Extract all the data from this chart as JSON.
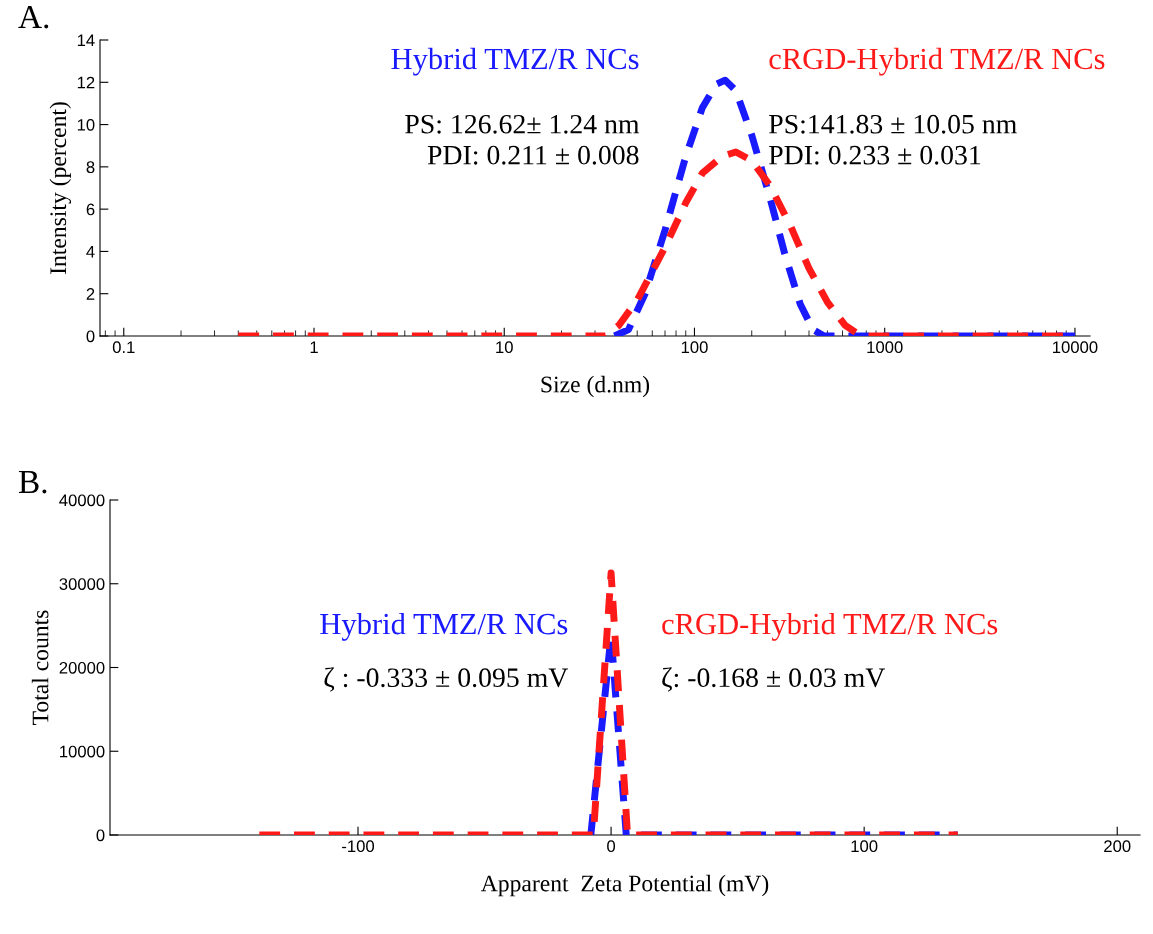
{
  "chart_data": [
    {
      "type": "line",
      "xlabel": "Size (d.nm)",
      "ylabel": "Intensity (percent)",
      "log": "x",
      "xlim": [
        0.075,
        12000
      ],
      "xticks": [
        0.1,
        1,
        10,
        100,
        1000,
        10000
      ],
      "ylim": [
        0,
        14
      ],
      "yticks": [
        0,
        2,
        4,
        6,
        8,
        10,
        12,
        14
      ],
      "line_style": "dashed",
      "marker": "none",
      "grid": false,
      "legend": false,
      "series": [
        {
          "name": "Hybrid TMZ/R NCs",
          "color": "#1a1aff",
          "x": [
            38,
            45,
            55,
            70,
            90,
            110,
            130,
            145,
            165,
            200,
            250,
            300,
            360,
            420,
            480,
            1000,
            10000
          ],
          "values": [
            0,
            0.3,
            2,
            5,
            8.5,
            10.8,
            11.9,
            12.1,
            11.6,
            9.5,
            6.5,
            3.8,
            1.5,
            0.3,
            0,
            0,
            0
          ]
        },
        {
          "name": "cRGD-Hybrid TMZ/R NCs",
          "color": "#ff1a1a",
          "x": [
            0.4,
            10,
            34,
            40,
            50,
            70,
            90,
            110,
            140,
            165,
            200,
            250,
            320,
            400,
            500,
            620,
            750,
            10000
          ],
          "values": [
            0,
            0,
            0,
            0.5,
            1.7,
            4.2,
            6.3,
            7.7,
            8.5,
            8.7,
            8.3,
            7.1,
            5.2,
            3.2,
            1.6,
            0.5,
            0,
            0
          ]
        }
      ],
      "annotations": [
        "A.",
        "PS: 126.62± 1.24 nm\nPDI: 0.211 ± 0.008",
        "PS:141.83 ± 10.05 nm\nPDI: 0.233 ± 0.031"
      ]
    },
    {
      "type": "line",
      "xlabel": "Apparent  Zeta Potential (mV)",
      "ylabel": "Total counts",
      "xlim": [
        -198,
        209
      ],
      "xticks": [
        -100,
        0,
        100,
        200
      ],
      "ylim": [
        0,
        40000
      ],
      "yticks": [
        0,
        10000,
        20000,
        30000,
        40000
      ],
      "line_style": "dashed",
      "marker": "none",
      "grid": false,
      "legend": false,
      "series": [
        {
          "name": "Hybrid TMZ/R NCs",
          "color": "#1a1aff",
          "x": [
            -8,
            0,
            6,
            137
          ],
          "values": [
            0,
            23900,
            0,
            0
          ]
        },
        {
          "name": "cRGD-Hybrid TMZ/R NCs",
          "color": "#ff1a1a",
          "x": [
            -139,
            -7,
            0,
            6.5,
            137
          ],
          "values": [
            0,
            0,
            31300,
            0,
            0
          ]
        }
      ],
      "annotations": [
        "B.",
        "ζ : -0.333 ± 0.095 mV",
        "ζ: -0.168 ± 0.03 mV"
      ]
    }
  ]
}
